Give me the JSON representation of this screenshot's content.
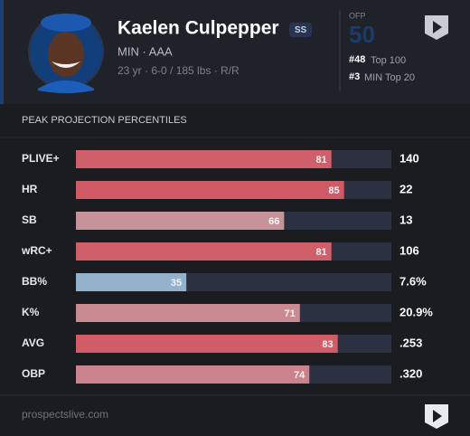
{
  "header": {
    "name": "Kaelen Culpepper",
    "position": "SS",
    "team_level": "MIN · AAA",
    "bio": "23 yr · 6-0 / 185 lbs · R/R",
    "ofp_label": "OFP",
    "ofp_value": "50",
    "ranks": [
      {
        "rank": "#48",
        "label": "Top 100"
      },
      {
        "rank": "#3",
        "label": "MIN Top 20"
      }
    ]
  },
  "section_title": "PEAK PROJECTION PERCENTILES",
  "rows": [
    {
      "label": "PLIVE+",
      "percentile": 81,
      "value": "140",
      "color": "#cf5f69"
    },
    {
      "label": "HR",
      "percentile": 85,
      "value": "22",
      "color": "#cf5a65"
    },
    {
      "label": "SB",
      "percentile": 66,
      "value": "13",
      "color": "#c7939b"
    },
    {
      "label": "wRC+",
      "percentile": 81,
      "value": "106",
      "color": "#cf5f69"
    },
    {
      "label": "BB%",
      "percentile": 35,
      "value": "7.6%",
      "color": "#92b3cb"
    },
    {
      "label": "K%",
      "percentile": 71,
      "value": "20.9%",
      "color": "#c98a92"
    },
    {
      "label": "AVG",
      "percentile": 83,
      "value": ".253",
      "color": "#cf5c67"
    },
    {
      "label": "OBP",
      "percentile": 74,
      "value": ".320",
      "color": "#ca838c"
    }
  ],
  "footer": {
    "site": "prospectslive.com"
  }
}
